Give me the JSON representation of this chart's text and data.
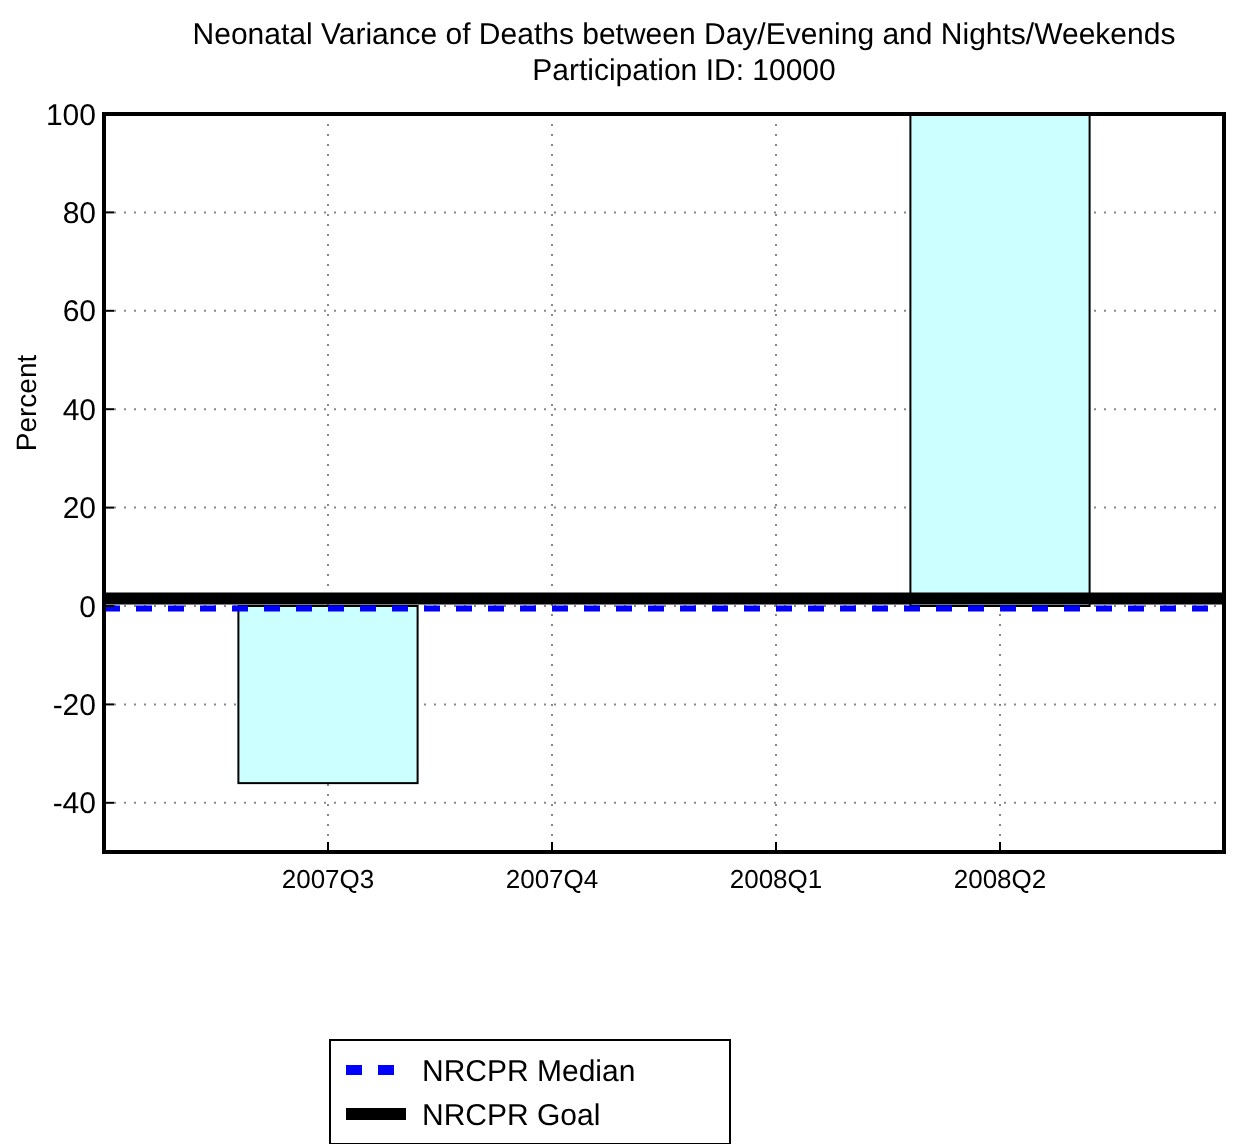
{
  "chart_data": {
    "type": "bar",
    "title": "Neonatal Variance of Deaths between Day/Evening and Nights/Weekends",
    "subtitle": "Participation ID: 10000",
    "ylabel": "Percent",
    "categories": [
      "2007Q3",
      "2007Q4",
      "2008Q1",
      "2008Q2"
    ],
    "values": [
      -36,
      null,
      null,
      100
    ],
    "color": "#ccffff",
    "ylim": [
      -50,
      100
    ],
    "yticks": [
      -40,
      -20,
      0,
      20,
      40,
      60,
      80,
      100
    ],
    "grid": true,
    "legend": "bottom",
    "ref_lines": [
      {
        "axis": "y",
        "value": -0.5,
        "label": "NRCPR Median",
        "color": "#0000ff",
        "line_style": "dashed"
      },
      {
        "axis": "y",
        "value": 1.5,
        "label": "NRCPR Goal",
        "color": "#000000",
        "line_style": "solid"
      }
    ]
  }
}
